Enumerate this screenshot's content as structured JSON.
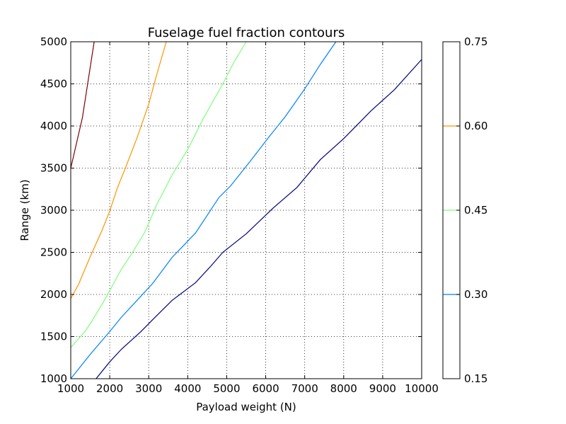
{
  "chart_data": {
    "type": "line",
    "title": "Fuselage fuel fraction contours",
    "xlabel": "Payload weight (N)",
    "ylabel": "Range (km)",
    "xlim": [
      1000,
      10000
    ],
    "ylim": [
      1000,
      5000
    ],
    "xticks": [
      1000,
      2000,
      3000,
      4000,
      5000,
      6000,
      7000,
      8000,
      9000,
      10000
    ],
    "yticks": [
      1000,
      1500,
      2000,
      2500,
      3000,
      3500,
      4000,
      4500,
      5000
    ],
    "grid": true,
    "series": [
      {
        "level": 0.15,
        "color": "#00007f",
        "points": [
          [
            1650,
            1000
          ],
          [
            2000,
            1200
          ],
          [
            2300,
            1350
          ],
          [
            2800,
            1560
          ],
          [
            3100,
            1700
          ],
          [
            3600,
            1930
          ],
          [
            4200,
            2140
          ],
          [
            4600,
            2340
          ],
          [
            4900,
            2500
          ],
          [
            5500,
            2720
          ],
          [
            6200,
            3030
          ],
          [
            6800,
            3270
          ],
          [
            7400,
            3600
          ],
          [
            8000,
            3850
          ],
          [
            8700,
            4180
          ],
          [
            9300,
            4430
          ],
          [
            10000,
            4790
          ]
        ]
      },
      {
        "level": 0.3,
        "color": "#0080ff",
        "points": [
          [
            1000,
            1000
          ],
          [
            1500,
            1290
          ],
          [
            2000,
            1560
          ],
          [
            2300,
            1730
          ],
          [
            2700,
            1930
          ],
          [
            3100,
            2130
          ],
          [
            3600,
            2440
          ],
          [
            4200,
            2730
          ],
          [
            4800,
            3150
          ],
          [
            5100,
            3290
          ],
          [
            5600,
            3580
          ],
          [
            6100,
            3880
          ],
          [
            6500,
            4110
          ],
          [
            7000,
            4440
          ],
          [
            7400,
            4730
          ],
          [
            7800,
            5000
          ]
        ]
      },
      {
        "level": 0.45,
        "color": "#7dff7a",
        "points": [
          [
            1000,
            1370
          ],
          [
            1400,
            1580
          ],
          [
            1800,
            1880
          ],
          [
            2100,
            2130
          ],
          [
            2300,
            2300
          ],
          [
            2600,
            2510
          ],
          [
            2900,
            2740
          ],
          [
            3200,
            3060
          ],
          [
            3600,
            3420
          ],
          [
            4000,
            3720
          ],
          [
            4400,
            4090
          ],
          [
            4900,
            4500
          ],
          [
            5200,
            4770
          ],
          [
            5500,
            5000
          ]
        ]
      },
      {
        "level": 0.6,
        "color": "#ff9400",
        "points": [
          [
            1000,
            1950
          ],
          [
            1200,
            2120
          ],
          [
            1500,
            2450
          ],
          [
            1800,
            2760
          ],
          [
            2000,
            2990
          ],
          [
            2200,
            3270
          ],
          [
            2400,
            3500
          ],
          [
            2700,
            3860
          ],
          [
            3000,
            4260
          ],
          [
            3200,
            4600
          ],
          [
            3450,
            5000
          ]
        ]
      },
      {
        "level": 0.75,
        "color": "#7f0000",
        "points": [
          [
            1000,
            3500
          ],
          [
            1300,
            4100
          ],
          [
            1600,
            5000
          ]
        ]
      }
    ],
    "colorbar": {
      "range": [
        0.15,
        0.75
      ],
      "ticks": [
        "0.15",
        "0.30",
        "0.45",
        "0.60",
        "0.75"
      ],
      "line_levels": [
        0.3,
        0.45,
        0.6
      ],
      "line_colors": [
        "#0080ff",
        "#7dff7a",
        "#ff9400"
      ]
    }
  }
}
